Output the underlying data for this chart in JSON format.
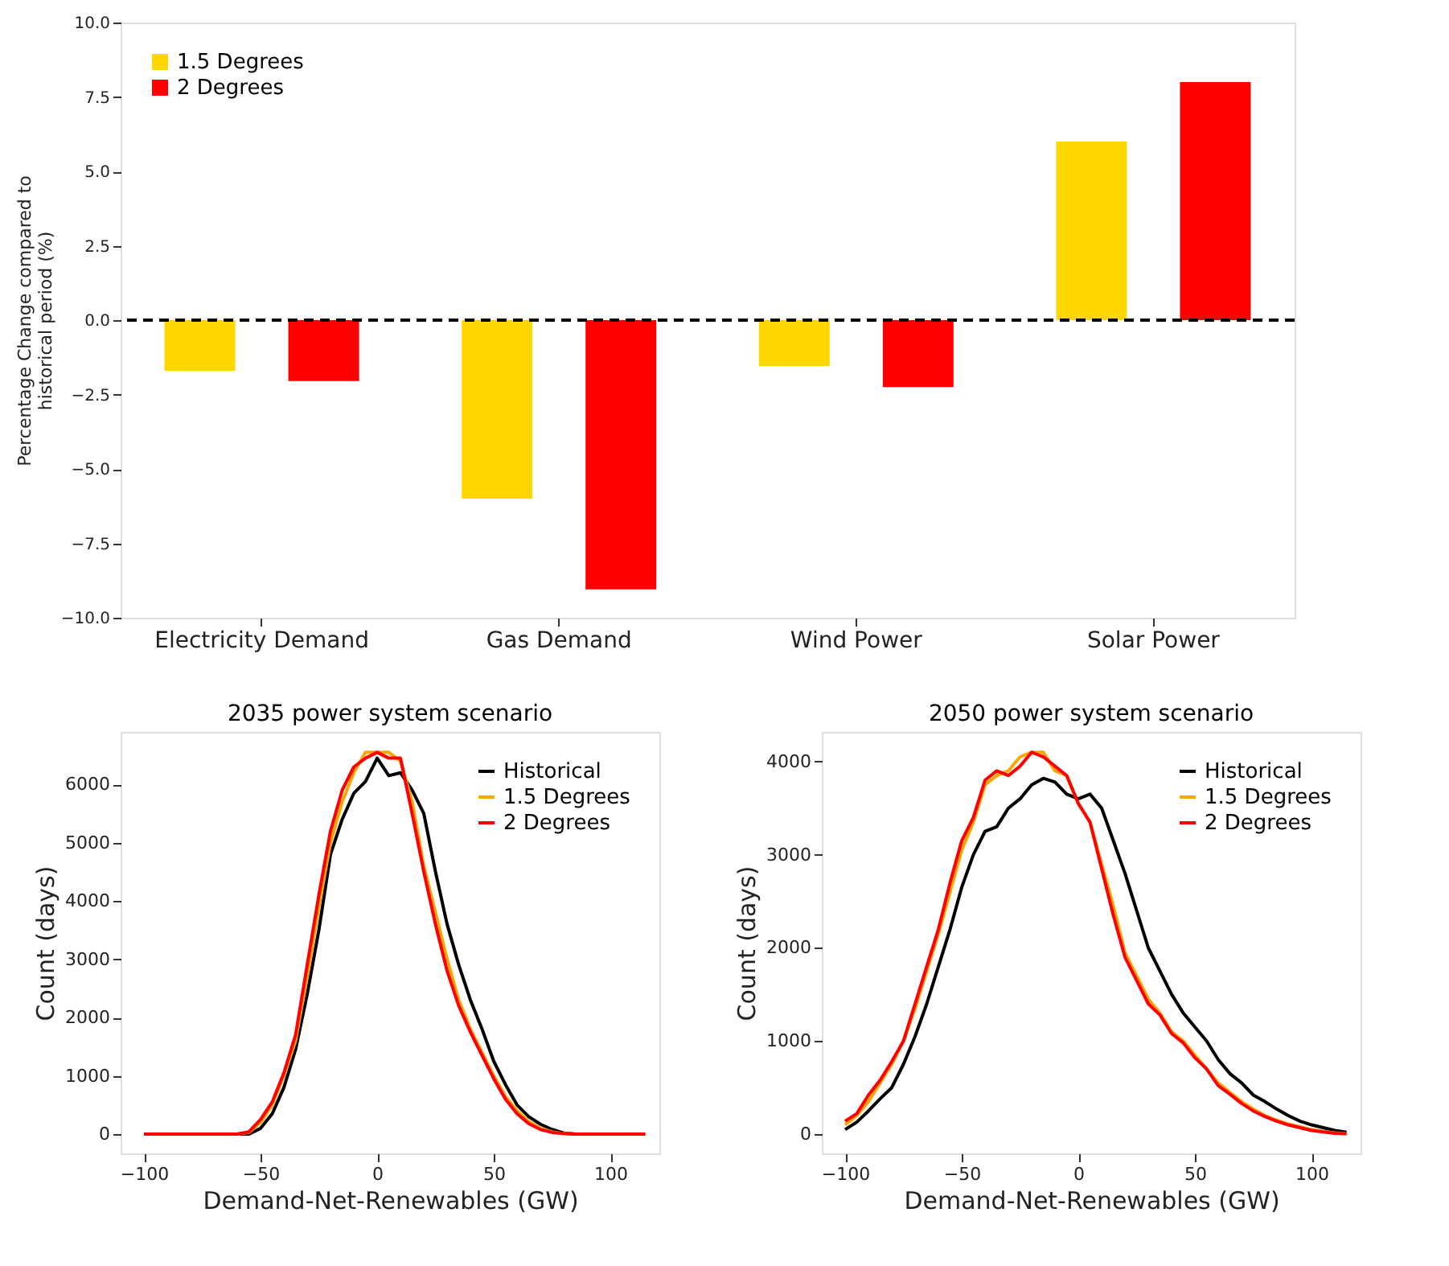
{
  "chart_data": [
    {
      "type": "bar",
      "ylabel": "Percentage Change compared to\nhistorical period (%)",
      "categories": [
        "Electricity Demand",
        "Gas Demand",
        "Wind Power",
        "Solar Power"
      ],
      "series": [
        {
          "name": "1.5 Degrees",
          "color": "#ffd700",
          "values": [
            -1.7,
            -6.0,
            -1.55,
            6.0
          ]
        },
        {
          "name": "2 Degrees",
          "color": "#ff0000",
          "values": [
            -2.05,
            -9.05,
            -2.25,
            8.0
          ]
        }
      ],
      "ylim": [
        -10,
        10
      ],
      "yticks": [
        {
          "value": -10,
          "label": "−10.0"
        },
        {
          "value": -7.5,
          "label": "−7.5"
        },
        {
          "value": -5,
          "label": "−5.0"
        },
        {
          "value": -2.5,
          "label": "−2.5"
        },
        {
          "value": 0,
          "label": "0.0"
        },
        {
          "value": 2.5,
          "label": "2.5"
        },
        {
          "value": 5,
          "label": "5.0"
        },
        {
          "value": 7.5,
          "label": "7.5"
        },
        {
          "value": 10,
          "label": "10.0"
        }
      ],
      "ref_lines": [
        {
          "axis": "y",
          "value": 0,
          "color": "#000000",
          "line_style": "dashed"
        }
      ],
      "legend": "top left",
      "grid": false
    },
    {
      "type": "line",
      "title": "2035 power system scenario",
      "xlabel": "Demand-Net-Renewables (GW)",
      "ylabel": "Count (days)",
      "x": [
        -100,
        -95,
        -90,
        -85,
        -80,
        -75,
        -70,
        -65,
        -60,
        -55,
        -50,
        -45,
        -40,
        -35,
        -30,
        -25,
        -20,
        -15,
        -10,
        -5,
        0,
        5,
        10,
        15,
        20,
        25,
        30,
        35,
        40,
        45,
        50,
        55,
        60,
        65,
        70,
        75,
        80,
        85,
        90,
        95,
        100,
        105,
        110,
        115
      ],
      "series": [
        {
          "name": "Historical",
          "color": "#000000",
          "values": [
            null,
            null,
            null,
            null,
            null,
            null,
            null,
            0,
            0,
            0,
            100,
            350,
            800,
            1450,
            2400,
            3500,
            4800,
            5400,
            5850,
            6050,
            6450,
            6150,
            6200,
            5900,
            5500,
            4500,
            3600,
            2900,
            2300,
            1800,
            1250,
            850,
            500,
            300,
            170,
            80,
            20,
            0,
            null,
            null,
            null,
            null,
            null,
            null
          ]
        },
        {
          "name": "1.5 Degrees",
          "color": "#ffa500",
          "values": [
            null,
            null,
            null,
            null,
            null,
            null,
            null,
            0,
            0,
            30,
            200,
            500,
            1000,
            1600,
            2700,
            3900,
            5000,
            5700,
            6200,
            6550,
            6550,
            6550,
            6400,
            5700,
            4600,
            3800,
            3000,
            2300,
            1800,
            1400,
            1000,
            650,
            400,
            220,
            100,
            40,
            10,
            0,
            null,
            null,
            null,
            null,
            null,
            null
          ]
        },
        {
          "name": "2 Degrees",
          "color": "#ff0000",
          "values": [
            0,
            0,
            0,
            0,
            0,
            0,
            0,
            0,
            0,
            40,
            250,
            550,
            1050,
            1700,
            2900,
            4100,
            5200,
            5900,
            6300,
            6450,
            6550,
            6450,
            6450,
            5500,
            4500,
            3600,
            2800,
            2200,
            1750,
            1350,
            950,
            600,
            350,
            180,
            80,
            30,
            10,
            0,
            0,
            0,
            0,
            0,
            0,
            0
          ]
        }
      ],
      "xlim": [
        -110,
        121
      ],
      "xticks": [
        {
          "value": -100,
          "label": "−100"
        },
        {
          "value": -50,
          "label": "−50"
        },
        0,
        50,
        100
      ],
      "ylim": [
        -330,
        6900
      ],
      "yticks": [
        0,
        1000,
        2000,
        3000,
        4000,
        5000,
        6000
      ],
      "legend": "top right",
      "grid": false
    },
    {
      "type": "line",
      "title": "2050 power system scenario",
      "xlabel": "Demand-Net-Renewables (GW)",
      "ylabel": "Count (days)",
      "x": [
        -100,
        -95,
        -90,
        -85,
        -80,
        -75,
        -70,
        -65,
        -60,
        -55,
        -50,
        -45,
        -40,
        -35,
        -30,
        -25,
        -20,
        -15,
        -10,
        -5,
        0,
        5,
        10,
        15,
        20,
        25,
        30,
        35,
        40,
        45,
        50,
        55,
        60,
        65,
        70,
        75,
        80,
        85,
        90,
        95,
        100,
        105,
        110,
        115
      ],
      "series": [
        {
          "name": "Historical",
          "color": "#000000",
          "values": [
            50,
            130,
            250,
            380,
            500,
            750,
            1050,
            1400,
            1800,
            2200,
            2650,
            3000,
            3250,
            3300,
            3500,
            3600,
            3750,
            3820,
            3780,
            3650,
            3600,
            3650,
            3500,
            3150,
            2800,
            2400,
            2000,
            1750,
            1500,
            1300,
            1150,
            1000,
            800,
            650,
            550,
            420,
            350,
            270,
            200,
            140,
            100,
            70,
            40,
            20
          ]
        },
        {
          "name": "1.5 Degrees",
          "color": "#ffa500",
          "values": [
            100,
            200,
            350,
            550,
            750,
            1000,
            1350,
            1750,
            2150,
            2600,
            3050,
            3350,
            3750,
            3850,
            3900,
            4050,
            4100,
            4100,
            3900,
            3850,
            3550,
            3350,
            2900,
            2450,
            1950,
            1700,
            1450,
            1300,
            1100,
            1000,
            850,
            700,
            550,
            450,
            350,
            270,
            200,
            150,
            110,
            80,
            50,
            30,
            15,
            5
          ]
        },
        {
          "name": "2 Degrees",
          "color": "#ff0000",
          "values": [
            140,
            220,
            420,
            580,
            780,
            1000,
            1400,
            1800,
            2200,
            2700,
            3150,
            3400,
            3800,
            3900,
            3850,
            3950,
            4100,
            4050,
            3950,
            3850,
            3550,
            3350,
            2850,
            2350,
            1900,
            1650,
            1400,
            1280,
            1080,
            980,
            820,
            700,
            520,
            430,
            330,
            250,
            190,
            140,
            100,
            70,
            40,
            25,
            10,
            5
          ]
        }
      ],
      "xlim": [
        -110,
        121
      ],
      "xticks": [
        {
          "value": -100,
          "label": "−100"
        },
        {
          "value": -50,
          "label": "−50"
        },
        0,
        50,
        100
      ],
      "ylim": [
        -206,
        4318
      ],
      "yticks": [
        0,
        1000,
        2000,
        3000,
        4000
      ],
      "legend": "top right",
      "grid": false
    }
  ]
}
